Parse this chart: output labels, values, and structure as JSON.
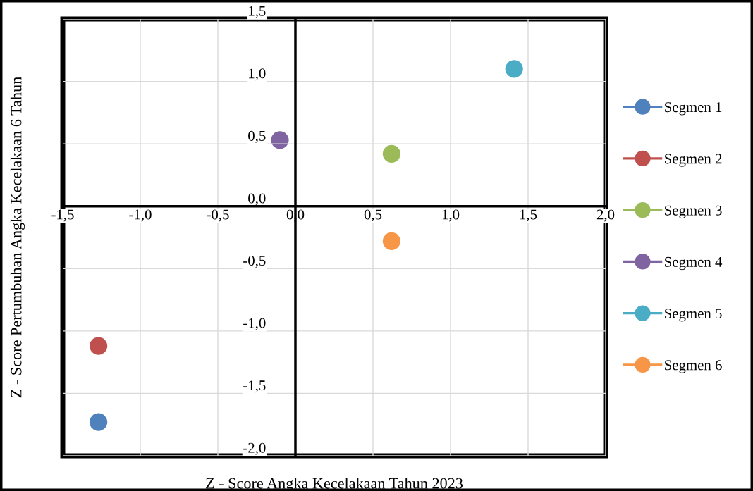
{
  "chart_data": {
    "type": "scatter",
    "xlabel": "Z - Score Angka Kecelakaan Tahun 2023",
    "ylabel": "Z - Score Pertumbuhan Angka Kecelakaan 6 Tahun",
    "series": [
      {
        "name": "Segmen 1",
        "color": "#4f81bd",
        "x": [
          -1.27
        ],
        "values": [
          -1.73
        ]
      },
      {
        "name": "Segmen 2",
        "color": "#c0504d",
        "x": [
          -1.27
        ],
        "values": [
          -1.12
        ]
      },
      {
        "name": "Segmen 3",
        "color": "#9bbb59",
        "x": [
          0.62
        ],
        "values": [
          0.42
        ]
      },
      {
        "name": "Segmen 4",
        "color": "#8064a2",
        "x": [
          -0.1
        ],
        "values": [
          0.53
        ]
      },
      {
        "name": "Segmen 5",
        "color": "#4bacc6",
        "x": [
          1.41
        ],
        "values": [
          1.1
        ]
      },
      {
        "name": "Segmen 6",
        "color": "#f79646",
        "x": [
          0.62
        ],
        "values": [
          -0.28
        ]
      }
    ],
    "xlim": [
      -1.5,
      2.0
    ],
    "ylim": [
      -2.0,
      1.5
    ],
    "xticks": [
      {
        "value": -1.5,
        "label": "-1,5"
      },
      {
        "value": -1.0,
        "label": "-1,0"
      },
      {
        "value": -0.5,
        "label": "-0,5"
      },
      {
        "value": 0,
        "label": "0,0"
      },
      {
        "value": 0.5,
        "label": "0,5"
      },
      {
        "value": 1.0,
        "label": "1,0"
      },
      {
        "value": 1.5,
        "label": "1,5"
      },
      {
        "value": 2.0,
        "label": "2,0"
      }
    ],
    "yticks": [
      {
        "value": -2.0,
        "label": "-2,0"
      },
      {
        "value": -1.5,
        "label": "-1,5"
      },
      {
        "value": -1.0,
        "label": "-1,0"
      },
      {
        "value": -0.5,
        "label": "-0,5"
      },
      {
        "value": 0,
        "label": "0,0"
      },
      {
        "value": 0.5,
        "label": "0,5"
      },
      {
        "value": 1.0,
        "label": "1,0"
      },
      {
        "value": 1.5,
        "label": "1,5"
      }
    ],
    "grid": true,
    "legend": "right",
    "marker": "circle"
  }
}
